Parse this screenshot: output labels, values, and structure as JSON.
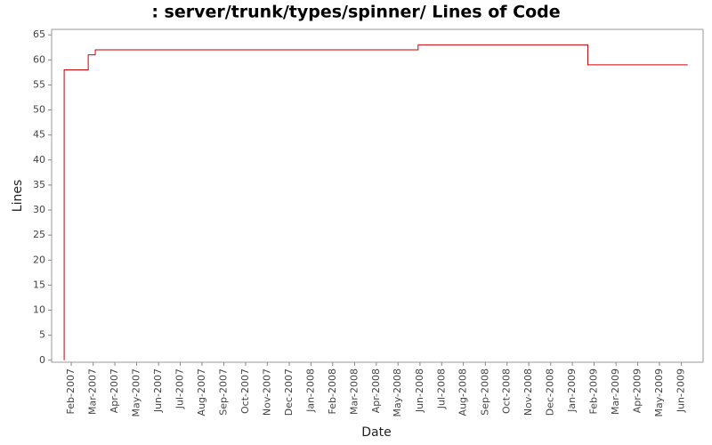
{
  "chart_data": {
    "type": "step-line",
    "title": ": server/trunk/types/spinner/ Lines of Code",
    "x_label": "Date",
    "y_label": "Lines",
    "color": "#cc0000",
    "x": [
      2007.056,
      2007.056,
      2007.148,
      2007.175,
      2008.41,
      2009.059,
      2009.441
    ],
    "values": [
      0,
      58,
      61,
      62,
      63,
      59,
      59
    ],
    "xlim": [
      2007.008,
      2009.5
    ],
    "xticks": [
      {
        "value": 2007.083,
        "label": "Feb-2007"
      },
      {
        "value": 2007.167,
        "label": "Mar-2007"
      },
      {
        "value": 2007.25,
        "label": "Apr-2007"
      },
      {
        "value": 2007.333,
        "label": "May-2007"
      },
      {
        "value": 2007.417,
        "label": "Jun-2007"
      },
      {
        "value": 2007.5,
        "label": "Jul-2007"
      },
      {
        "value": 2007.583,
        "label": "Aug-2007"
      },
      {
        "value": 2007.667,
        "label": "Sep-2007"
      },
      {
        "value": 2007.75,
        "label": "Oct-2007"
      },
      {
        "value": 2007.833,
        "label": "Nov-2007"
      },
      {
        "value": 2007.917,
        "label": "Dec-2007"
      },
      {
        "value": 2008.0,
        "label": "Jan-2008"
      },
      {
        "value": 2008.083,
        "label": "Feb-2008"
      },
      {
        "value": 2008.167,
        "label": "Mar-2008"
      },
      {
        "value": 2008.25,
        "label": "Apr-2008"
      },
      {
        "value": 2008.333,
        "label": "May-2008"
      },
      {
        "value": 2008.417,
        "label": "Jun-2008"
      },
      {
        "value": 2008.5,
        "label": "Jul-2008"
      },
      {
        "value": 2008.583,
        "label": "Aug-2008"
      },
      {
        "value": 2008.667,
        "label": "Sep-2008"
      },
      {
        "value": 2008.75,
        "label": "Oct-2008"
      },
      {
        "value": 2008.833,
        "label": "Nov-2008"
      },
      {
        "value": 2008.917,
        "label": "Dec-2008"
      },
      {
        "value": 2009.0,
        "label": "Jan-2009"
      },
      {
        "value": 2009.083,
        "label": "Feb-2009"
      },
      {
        "value": 2009.167,
        "label": "Mar-2009"
      },
      {
        "value": 2009.25,
        "label": "Apr-2009"
      },
      {
        "value": 2009.333,
        "label": "May-2009"
      },
      {
        "value": 2009.417,
        "label": "Jun-2009"
      }
    ],
    "ylim": [
      -0.4,
      66.1
    ],
    "yticks": [
      0,
      5,
      10,
      15,
      20,
      25,
      30,
      35,
      40,
      45,
      50,
      55,
      60,
      65
    ],
    "grid": false
  }
}
